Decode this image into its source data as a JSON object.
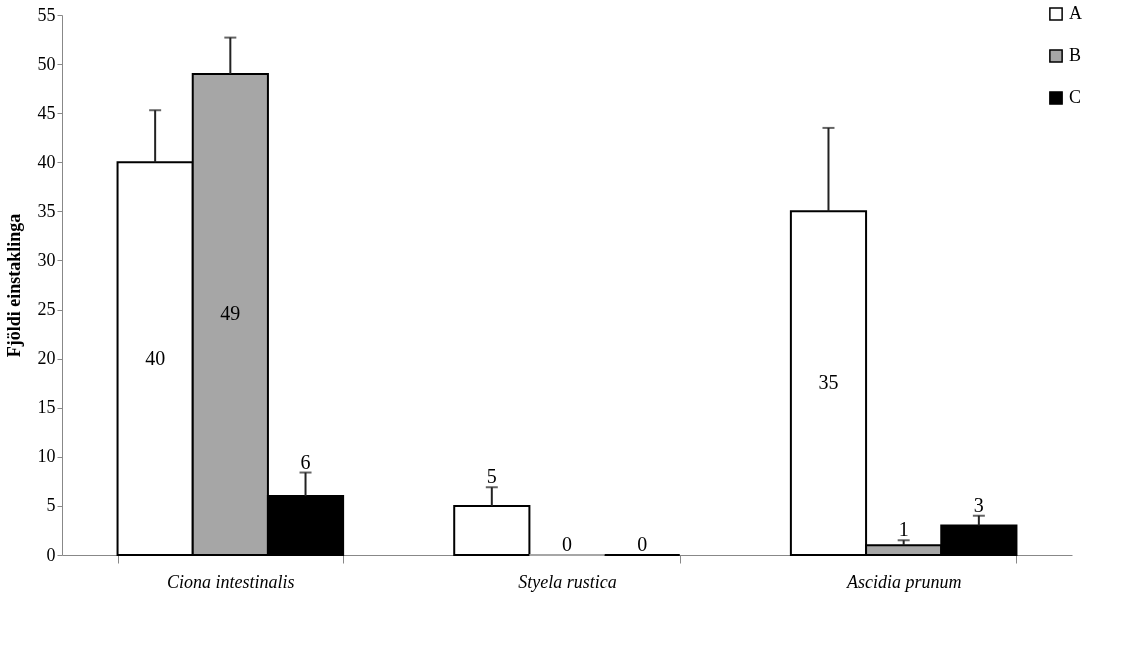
{
  "chart_data": {
    "type": "bar",
    "ylabel": "Fjöldi einstaklinga",
    "categories": [
      "Ciona intestinalis",
      "Styela rustica",
      "Ascidia prunum"
    ],
    "series": [
      {
        "name": "A",
        "color": "#ffffff",
        "values": [
          40,
          5,
          35
        ],
        "errors": [
          [
            40,
            45.3
          ],
          [
            5,
            6.9
          ],
          [
            35,
            43.5
          ]
        ]
      },
      {
        "name": "B",
        "color": "#a6a6a6",
        "values": [
          49,
          0,
          1
        ],
        "errors": [
          [
            49,
            52.7
          ],
          null,
          [
            1,
            1.5
          ]
        ]
      },
      {
        "name": "C",
        "color": "#000000",
        "values": [
          6,
          0,
          3
        ],
        "errors": [
          [
            6,
            8.4
          ],
          null,
          [
            3,
            4
          ]
        ]
      }
    ],
    "ylim": [
      0,
      55
    ],
    "yticks": [
      0,
      5,
      10,
      15,
      20,
      25,
      30,
      35,
      40,
      45,
      50,
      55
    ],
    "grid": false,
    "legend": "top right",
    "data_labels": true
  }
}
